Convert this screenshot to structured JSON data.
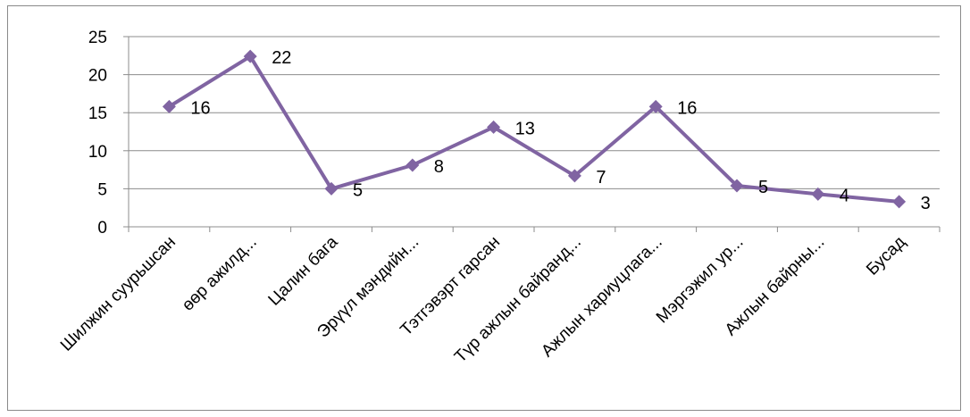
{
  "chart_data": {
    "type": "line",
    "title": "",
    "xlabel": "",
    "ylabel": "",
    "ylim": [
      0,
      25
    ],
    "yticks": [
      0,
      5,
      10,
      15,
      20,
      25
    ],
    "grid": true,
    "legend": "none",
    "categories": [
      "Шилжин суурьшсан",
      "өөр ажилд...",
      "Цалин бага",
      "Эрүүл мэндийн...",
      "Тэтгэвэрт гарсан",
      "Түр ажлын байранд...",
      "Ажлын хариуцлага...",
      "Мэргэжил ур...",
      "Ажлын байрны...",
      "Бусад"
    ],
    "series": [
      {
        "values": [
          15.8,
          22.4,
          5,
          8.1,
          13.1,
          6.7,
          15.8,
          5.4,
          4.3,
          3.3
        ],
        "labels": [
          "16",
          "22",
          "5",
          "8",
          "13",
          "7",
          "16",
          "5",
          "4",
          "3"
        ],
        "color": "#8064A2"
      }
    ]
  }
}
